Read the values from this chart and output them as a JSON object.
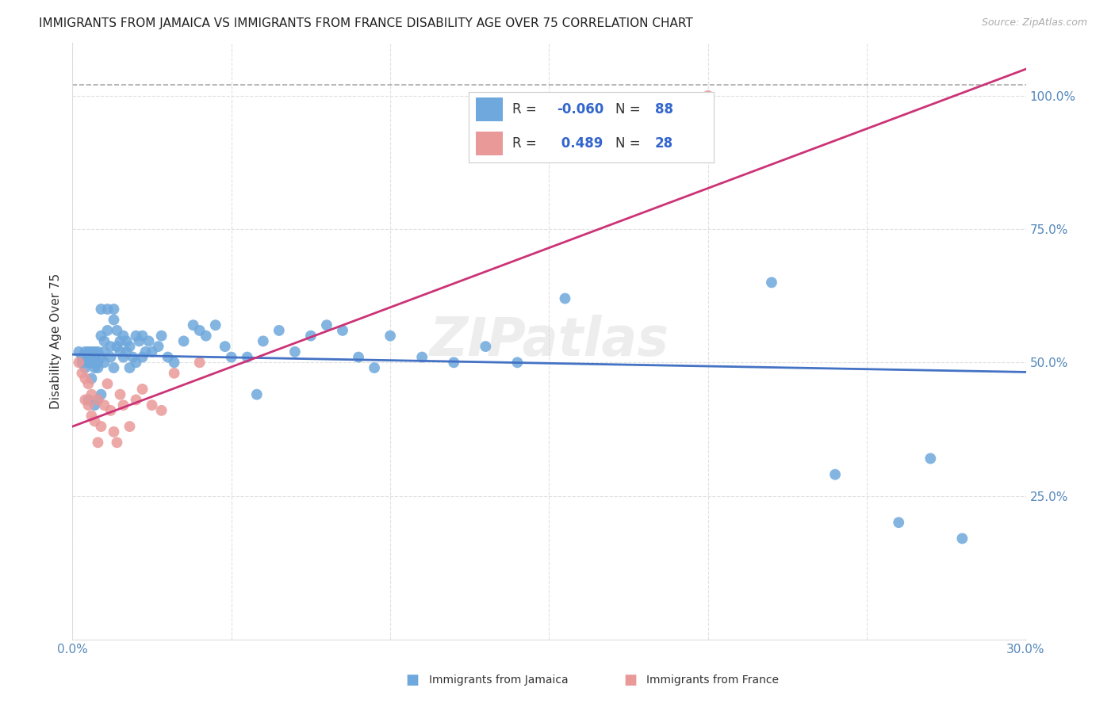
{
  "title": "IMMIGRANTS FROM JAMAICA VS IMMIGRANTS FROM FRANCE DISABILITY AGE OVER 75 CORRELATION CHART",
  "source": "Source: ZipAtlas.com",
  "ylabel": "Disability Age Over 75",
  "xlim": [
    0.0,
    0.3
  ],
  "ylim": [
    -0.02,
    1.1
  ],
  "y_min": 0.0,
  "y_max": 1.0,
  "blue_color": "#6fa8dc",
  "pink_color": "#ea9999",
  "trend_blue": "#4472c4",
  "trend_pink": "#cc3377",
  "trend_gray": "#aaaaaa",
  "background_color": "#ffffff",
  "grid_color": "#e0e0e0",
  "right_label_color": "#4472c4",
  "jamaica_x": [
    0.002,
    0.003,
    0.003,
    0.004,
    0.004,
    0.005,
    0.005,
    0.005,
    0.005,
    0.006,
    0.006,
    0.006,
    0.007,
    0.007,
    0.007,
    0.007,
    0.008,
    0.008,
    0.008,
    0.009,
    0.009,
    0.009,
    0.01,
    0.01,
    0.01,
    0.011,
    0.011,
    0.012,
    0.012,
    0.013,
    0.013,
    0.013,
    0.014,
    0.014,
    0.015,
    0.015,
    0.016,
    0.016,
    0.017,
    0.017,
    0.018,
    0.018,
    0.019,
    0.02,
    0.02,
    0.021,
    0.022,
    0.022,
    0.023,
    0.024,
    0.025,
    0.027,
    0.028,
    0.03,
    0.032,
    0.035,
    0.038,
    0.04,
    0.042,
    0.045,
    0.048,
    0.05,
    0.055,
    0.058,
    0.06,
    0.065,
    0.07,
    0.075,
    0.08,
    0.085,
    0.09,
    0.095,
    0.1,
    0.11,
    0.12,
    0.13,
    0.14,
    0.155,
    0.22,
    0.24,
    0.26,
    0.27,
    0.28,
    0.005,
    0.006,
    0.007,
    0.008,
    0.009
  ],
  "jamaica_y": [
    0.52,
    0.5,
    0.51,
    0.49,
    0.52,
    0.5,
    0.51,
    0.52,
    0.5,
    0.51,
    0.5,
    0.52,
    0.49,
    0.51,
    0.5,
    0.52,
    0.49,
    0.52,
    0.5,
    0.51,
    0.6,
    0.55,
    0.5,
    0.52,
    0.54,
    0.6,
    0.56,
    0.51,
    0.53,
    0.6,
    0.58,
    0.49,
    0.56,
    0.53,
    0.52,
    0.54,
    0.51,
    0.55,
    0.52,
    0.54,
    0.49,
    0.53,
    0.51,
    0.55,
    0.5,
    0.54,
    0.51,
    0.55,
    0.52,
    0.54,
    0.52,
    0.53,
    0.55,
    0.51,
    0.5,
    0.54,
    0.57,
    0.56,
    0.55,
    0.57,
    0.53,
    0.51,
    0.51,
    0.44,
    0.54,
    0.56,
    0.52,
    0.55,
    0.57,
    0.56,
    0.51,
    0.49,
    0.55,
    0.51,
    0.5,
    0.53,
    0.5,
    0.62,
    0.65,
    0.29,
    0.2,
    0.32,
    0.17,
    0.43,
    0.47,
    0.42,
    0.43,
    0.44
  ],
  "france_x": [
    0.002,
    0.003,
    0.004,
    0.004,
    0.005,
    0.005,
    0.006,
    0.006,
    0.007,
    0.008,
    0.008,
    0.009,
    0.01,
    0.011,
    0.012,
    0.013,
    0.014,
    0.015,
    0.016,
    0.018,
    0.02,
    0.022,
    0.025,
    0.028,
    0.032,
    0.04,
    0.15,
    0.2
  ],
  "france_y": [
    0.5,
    0.48,
    0.43,
    0.47,
    0.42,
    0.46,
    0.4,
    0.44,
    0.39,
    0.35,
    0.43,
    0.38,
    0.42,
    0.46,
    0.41,
    0.37,
    0.35,
    0.44,
    0.42,
    0.38,
    0.43,
    0.45,
    0.42,
    0.41,
    0.48,
    0.5,
    0.9,
    1.0
  ],
  "jamaica_trend_x0": 0.0,
  "jamaica_trend_y0": 0.515,
  "jamaica_trend_x1": 0.3,
  "jamaica_trend_y1": 0.482,
  "france_trend_x0": 0.0,
  "france_trend_y0": 0.38,
  "france_trend_x1": 0.3,
  "france_trend_y1": 1.05,
  "gray_line_x0": 0.0,
  "gray_line_y0": 1.02,
  "gray_line_x1": 0.3,
  "gray_line_y1": 1.02,
  "jamaica_R": -0.06,
  "jamaica_N": 88,
  "france_R": 0.489,
  "france_N": 28,
  "title_fontsize": 11,
  "axis_fontsize": 11,
  "legend_fontsize": 13
}
